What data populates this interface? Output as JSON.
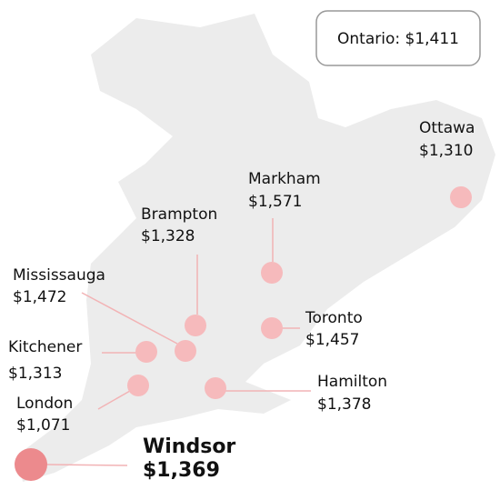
{
  "summary": {
    "label": "Ontario:",
    "value": "$1,411"
  },
  "cities": [
    {
      "name": "Ottawa",
      "value": "$1,310"
    },
    {
      "name": "Markham",
      "value": "$1,571"
    },
    {
      "name": "Brampton",
      "value": "$1,328"
    },
    {
      "name": "Mississauga",
      "value": "$1,472"
    },
    {
      "name": "Toronto",
      "value": "$1,457"
    },
    {
      "name": "Kitchener",
      "value": "$1,313"
    },
    {
      "name": "London",
      "value": "$1,071"
    },
    {
      "name": "Hamilton",
      "value": "$1,378"
    },
    {
      "name": "Windsor",
      "value": "$1,369"
    }
  ]
}
